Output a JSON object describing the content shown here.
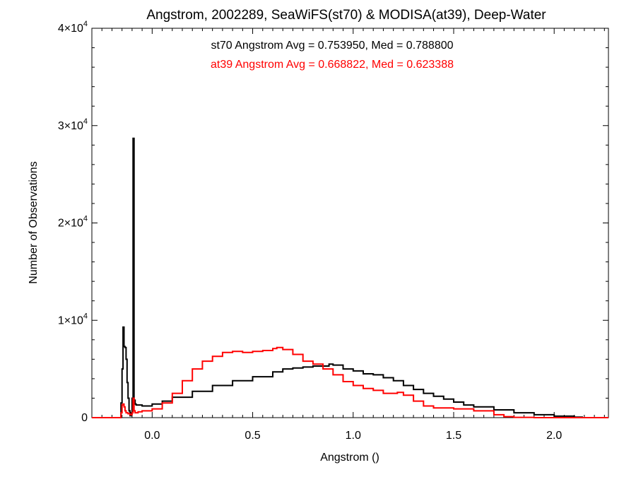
{
  "chart_data": {
    "type": "line",
    "title": "Angstrom, 2002289, SeaWiFS(st70) & MODISA(at39), Deep-Water",
    "xlabel": "Angstrom ()",
    "ylabel": "Number of Observations",
    "xlim": [
      -0.3,
      2.27
    ],
    "ylim": [
      0,
      40000
    ],
    "x_ticks": [
      0.0,
      0.5,
      1.0,
      1.5,
      2.0
    ],
    "x_tick_labels": [
      "0.0",
      "0.5",
      "1.0",
      "1.5",
      "2.0"
    ],
    "y_ticks": [
      0,
      10000,
      20000,
      30000,
      40000
    ],
    "y_tick_labels": [
      {
        "mantissa": "0",
        "exp": ""
      },
      {
        "mantissa": "1×10",
        "exp": "4"
      },
      {
        "mantissa": "2×10",
        "exp": "4"
      },
      {
        "mantissa": "3×10",
        "exp": "4"
      },
      {
        "mantissa": "4×10",
        "exp": "4"
      }
    ],
    "annotations": [
      {
        "text": "st70 Angstrom Avg = 0.753950, Med = 0.788800",
        "color": "#000000"
      },
      {
        "text": "at39 Angstrom Avg = 0.668822, Med = 0.623388",
        "color": "#ff0000"
      }
    ],
    "series": [
      {
        "color": "#000000",
        "x": [
          -0.3,
          -0.16,
          -0.155,
          -0.15,
          -0.145,
          -0.14,
          -0.135,
          -0.13,
          -0.125,
          -0.12,
          -0.115,
          -0.11,
          -0.105,
          -0.1,
          -0.095,
          -0.09,
          -0.085,
          -0.08,
          -0.05,
          0.0,
          0.05,
          0.1,
          0.2,
          0.3,
          0.4,
          0.5,
          0.6,
          0.65,
          0.7,
          0.75,
          0.8,
          0.85,
          0.88,
          0.9,
          0.95,
          1.0,
          1.05,
          1.1,
          1.15,
          1.2,
          1.25,
          1.3,
          1.35,
          1.4,
          1.45,
          1.5,
          1.55,
          1.6,
          1.7,
          1.8,
          1.9,
          2.0,
          2.1,
          2.14,
          2.15,
          2.27
        ],
        "y": [
          0,
          0,
          1500,
          5000,
          9300,
          7300,
          7200,
          6000,
          3600,
          2000,
          700,
          200,
          500,
          2000,
          28700,
          1800,
          1400,
          1300,
          1200,
          1400,
          1700,
          2100,
          2700,
          3300,
          3800,
          4200,
          4700,
          5000,
          5100,
          5200,
          5300,
          5300,
          5500,
          5400,
          5000,
          4800,
          4500,
          4400,
          4100,
          3800,
          3300,
          2900,
          2500,
          2200,
          1900,
          1600,
          1300,
          1100,
          800,
          500,
          300,
          150,
          60,
          0,
          0,
          0
        ]
      },
      {
        "color": "#ff0000",
        "x": [
          -0.3,
          -0.16,
          -0.155,
          -0.15,
          -0.145,
          -0.14,
          -0.135,
          -0.13,
          -0.12,
          -0.11,
          -0.1,
          -0.095,
          -0.09,
          -0.085,
          -0.08,
          -0.07,
          -0.05,
          0.0,
          0.05,
          0.1,
          0.15,
          0.2,
          0.25,
          0.3,
          0.35,
          0.4,
          0.45,
          0.5,
          0.55,
          0.6,
          0.62,
          0.65,
          0.7,
          0.75,
          0.8,
          0.85,
          0.9,
          0.95,
          1.0,
          1.05,
          1.1,
          1.15,
          1.2,
          1.22,
          1.25,
          1.3,
          1.35,
          1.4,
          1.5,
          1.6,
          1.7,
          1.75,
          1.8,
          1.9,
          2.0,
          2.1,
          2.2,
          2.27
        ],
        "y": [
          0,
          0,
          500,
          1300,
          1400,
          1100,
          700,
          500,
          400,
          300,
          500,
          2000,
          700,
          500,
          500,
          600,
          700,
          900,
          1500,
          2500,
          3800,
          5000,
          5800,
          6300,
          6700,
          6800,
          6700,
          6800,
          6900,
          7100,
          7200,
          7000,
          6500,
          5800,
          5500,
          5000,
          4400,
          3700,
          3300,
          3000,
          2800,
          2500,
          2500,
          2600,
          2300,
          1700,
          1200,
          1000,
          900,
          700,
          300,
          100,
          30,
          0,
          0,
          0,
          0,
          0
        ]
      }
    ]
  }
}
